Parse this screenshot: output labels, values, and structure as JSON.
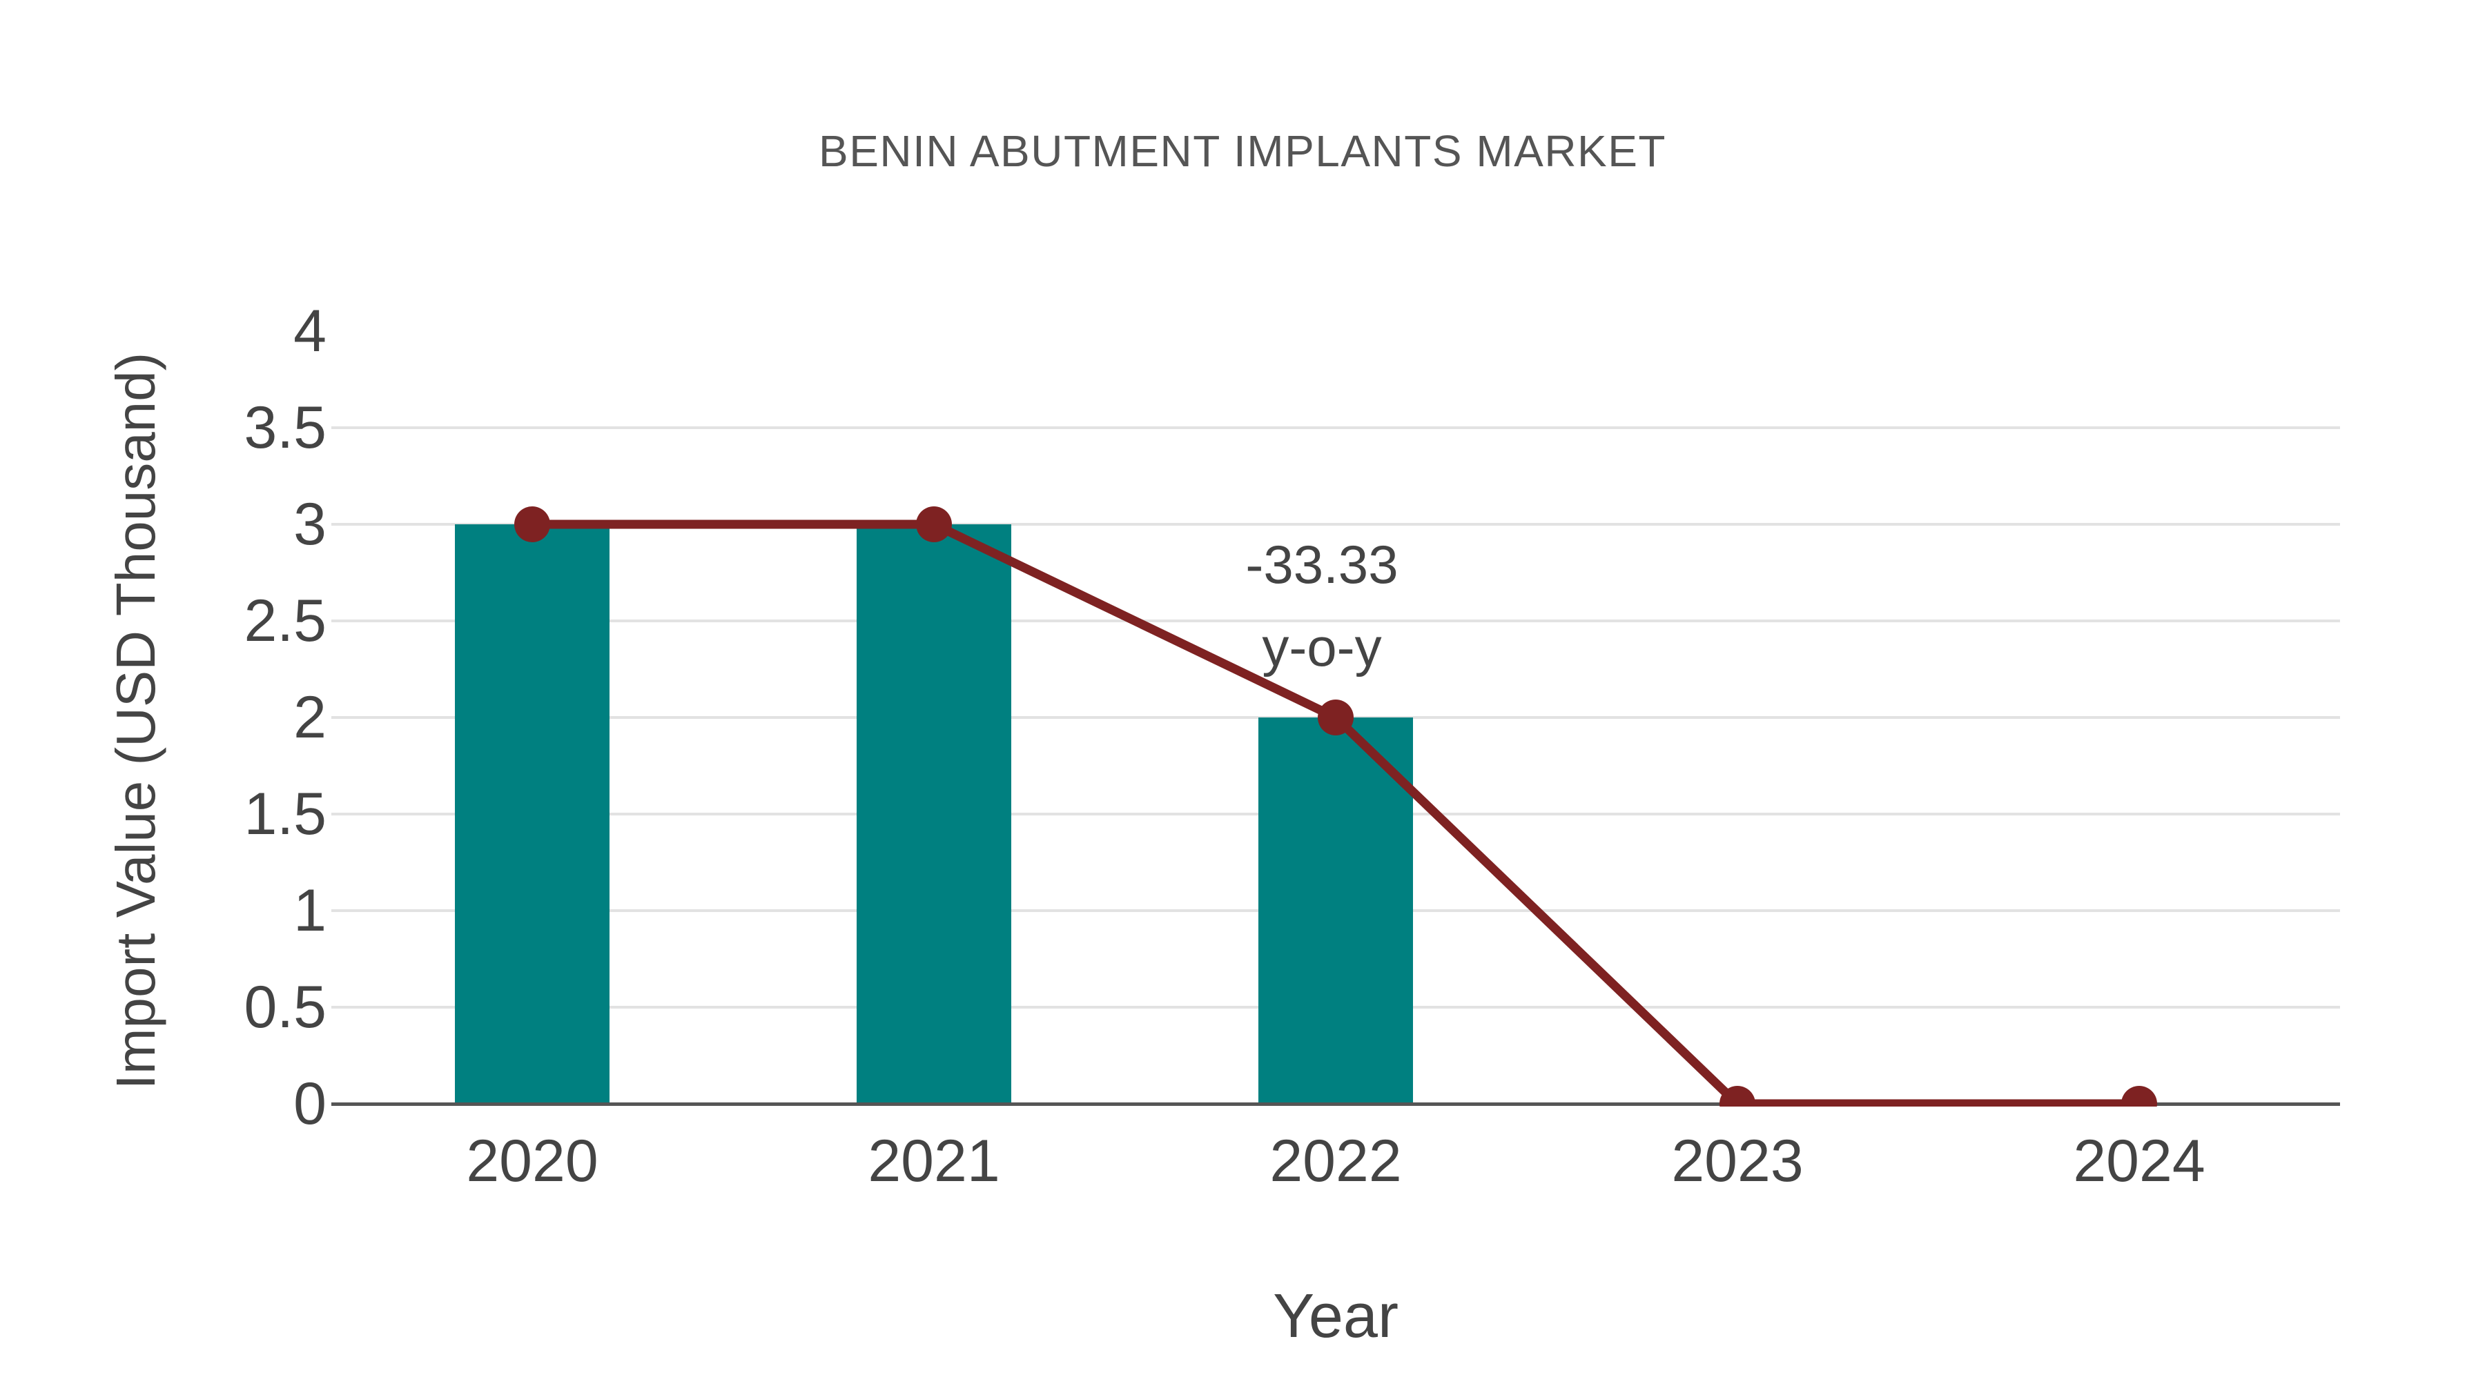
{
  "chart_data": {
    "type": "bar",
    "subtype": "bar-with-line-overlay",
    "title": "BENIN ABUTMENT IMPLANTS MARKET",
    "xlabel": "Year",
    "ylabel": "Import Value (USD Thousand)",
    "categories": [
      "2020",
      "2021",
      "2022",
      "2023",
      "2024"
    ],
    "series": [
      {
        "name": "import-value-bars",
        "type": "bar",
        "values": [
          3,
          3,
          2,
          0,
          0
        ]
      },
      {
        "name": "import-value-trend",
        "type": "line",
        "values": [
          3,
          3,
          2,
          0,
          0
        ]
      }
    ],
    "ylim": [
      0,
      4
    ],
    "ytick_labels": [
      "0",
      "0.5",
      "1",
      "1.5",
      "2",
      "2.5",
      "3",
      "3.5",
      "4"
    ],
    "grid": "horizontal-on",
    "legend": "none",
    "annotation": {
      "line1": "-33.33",
      "line2": "y-o-y",
      "anchor_category": "2022",
      "anchor_value": 2
    },
    "colors": {
      "bar": "#008080",
      "line": "#7E2222",
      "grid": "#e2e2e2",
      "axis": "#555555",
      "text": "#444444",
      "title": "#555555"
    }
  }
}
